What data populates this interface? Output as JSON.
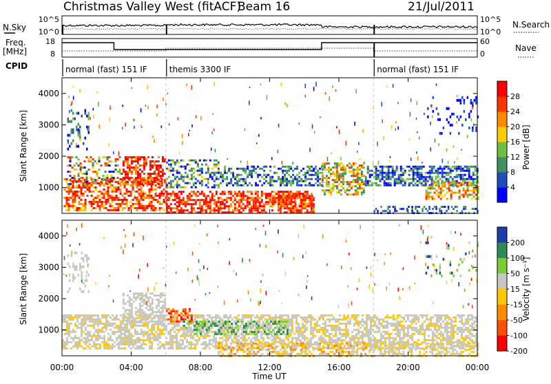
{
  "header": {
    "station": "Christmas Valley West (fitACF)",
    "beam": "Beam 16",
    "date": "21/Jul/2011"
  },
  "top_panels": {
    "nsky_label": "N.Sky",
    "nsky_ticks": [
      "10^5",
      "10^0"
    ],
    "nsearch_label": "N.Search",
    "nsearch_ticks": [
      "10^5",
      "10^0"
    ],
    "freq_label": "Freq.",
    "freq_unit": "[MHz]",
    "freq_ticks": [
      "18",
      "8"
    ],
    "nave_label": "Nave",
    "nave_ticks": [
      "60",
      "0"
    ],
    "cpid_label": "CPID",
    "cpid_segments": [
      {
        "label": "normal (fast) 151 IF",
        "start_hour": 0,
        "end_hour": 6
      },
      {
        "label": "themis 3300 IF",
        "start_hour": 6,
        "end_hour": 18
      },
      {
        "label": "normal (fast) 151 IF",
        "start_hour": 18,
        "end_hour": 24
      }
    ]
  },
  "time_axis": {
    "label": "Time UT",
    "ticks": [
      "00:00",
      "04:00",
      "08:00",
      "12:00",
      "16:00",
      "20:00",
      "00:00"
    ],
    "range_hours": [
      0,
      24
    ]
  },
  "chart_data": [
    {
      "type": "heatmap",
      "ylabel": "Slant Range [km]",
      "yticks": [
        "1000",
        "2000",
        "3000",
        "4000"
      ],
      "ylim": [
        180,
        4500
      ],
      "colorbar": {
        "label": "Power [dB]",
        "ticks": [
          "4",
          "8",
          "12",
          "16",
          "20",
          "24",
          "28"
        ],
        "range": [
          0,
          30
        ],
        "colors": [
          "#0000ff",
          "#1f4fb8",
          "#3f8f5f",
          "#6fbf3f",
          "#ffcc00",
          "#ff8c00",
          "#ff3300",
          "#ff0000"
        ]
      },
      "features": [
        {
          "x": [
            0.5,
            6
          ],
          "y": [
            300,
            1300
          ],
          "value": "24-30"
        },
        {
          "x": [
            3.5,
            6
          ],
          "y": [
            1100,
            2000
          ],
          "value": "20-30"
        },
        {
          "x": [
            6,
            14.5
          ],
          "y": [
            200,
            900
          ],
          "value": "20-30"
        },
        {
          "x": [
            6,
            24
          ],
          "y": [
            1100,
            1700
          ],
          "value": "4-16"
        },
        {
          "x": [
            15,
            17.5
          ],
          "y": [
            800,
            1800
          ],
          "value": "16-24"
        },
        {
          "x": [
            18,
            24
          ],
          "y": [
            200,
            400
          ],
          "value": "8-12"
        },
        {
          "x": [
            21,
            24
          ],
          "y": [
            2700,
            4000
          ],
          "value": "4-8"
        }
      ]
    },
    {
      "type": "heatmap",
      "ylabel": "Slant Range [km]",
      "yticks": [
        "1000",
        "2000",
        "3000",
        "4000"
      ],
      "ylim": [
        180,
        4500
      ],
      "colorbar": {
        "label": "Velocity [m s⁻¹]",
        "ticks": [
          "200",
          "100",
          "50",
          "15",
          "-15",
          "-50",
          "-100",
          "-200"
        ],
        "range": [
          -250,
          250
        ],
        "colors": [
          "#1c3fa8",
          "#2e8b57",
          "#7ccd32",
          "#c8c8c0",
          "#ffc800",
          "#ff8c00",
          "#ff5000",
          "#ff0000"
        ]
      },
      "features": [
        {
          "x": [
            0,
            24
          ],
          "y": [
            400,
            1500
          ],
          "value": "-15 to 15"
        },
        {
          "x": [
            6,
            7.5
          ],
          "y": [
            1300,
            1700
          ],
          "value": "-100 to -200"
        },
        {
          "x": [
            7,
            13
          ],
          "y": [
            900,
            1300
          ],
          "value": "50 to 100"
        },
        {
          "x": [
            9,
            18
          ],
          "y": [
            200,
            600
          ],
          "value": "-15 to -50"
        }
      ]
    }
  ]
}
